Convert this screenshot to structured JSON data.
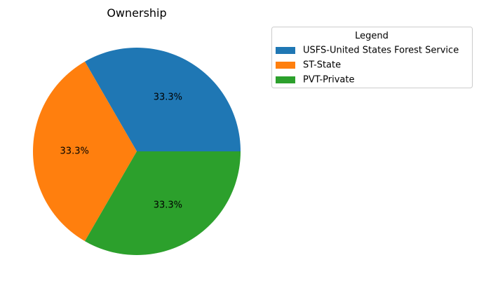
{
  "chart_data": {
    "type": "pie",
    "title": "Ownership",
    "categories": [
      "USFS-United States Forest Service",
      "ST-State",
      "PVT-Private"
    ],
    "values": [
      1,
      1,
      1
    ],
    "percent_labels": [
      "33.3%",
      "33.3%",
      "33.3%"
    ],
    "colors": [
      "#1f77b4",
      "#ff7f0e",
      "#2ca02c"
    ],
    "legend": {
      "title": "Legend",
      "placement": "upper-right, outside the pie"
    }
  }
}
